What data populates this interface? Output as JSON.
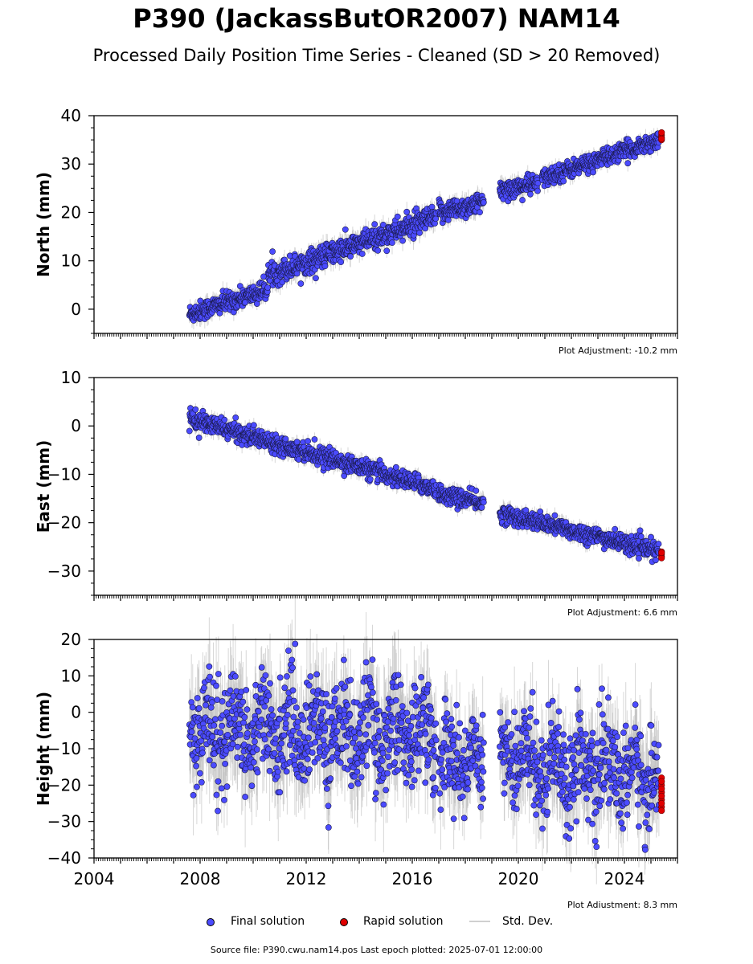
{
  "header": {
    "title": "P390 (JackassButOR2007) NAM14",
    "subtitle": "Processed Daily Position Time Series - Cleaned (SD > 20 Removed)"
  },
  "colors": {
    "final": "#4b4bff",
    "rapid": "#e00000",
    "stddev": "#bdbdbd",
    "axis": "#000000"
  },
  "legend": {
    "final_label": "Final solution",
    "rapid_label": "Rapid solution",
    "std_label": "Std. Dev."
  },
  "footer": {
    "source_text": "Source file: P390.cwu.nam14.pos  Last epoch plotted: 2025-07-01 12:00:00"
  },
  "chart_data": [
    {
      "type": "scatter",
      "ylabel": "North (mm)",
      "adjustment_label": "Plot Adjustment: -10.2 mm",
      "xlim": [
        2004,
        2026
      ],
      "ylim": [
        -5,
        40
      ],
      "yticks": [
        0,
        10,
        20,
        30,
        40
      ],
      "grid": false,
      "segments": [
        {
          "start": 2007.6,
          "end": 2010.55,
          "v0": -1,
          "v1": 4,
          "noise": 1.0
        },
        {
          "start": 2010.55,
          "end": 2016.9,
          "v0": 7,
          "v1": 19,
          "noise": 1.2
        },
        {
          "start": 2017.0,
          "end": 2018.7,
          "v0": 20,
          "v1": 22,
          "noise": 1.1
        },
        {
          "start": 2019.3,
          "end": 2020.75,
          "v0": 24.5,
          "v1": 26,
          "noise": 1.0
        },
        {
          "start": 2020.9,
          "end": 2025.3,
          "v0": 27,
          "v1": 35,
          "noise": 0.9
        }
      ],
      "rapid": {
        "x": 2025.4,
        "values": [
          35,
          36,
          35.5,
          36.5,
          35.2
        ]
      }
    },
    {
      "type": "scatter",
      "ylabel": "East (mm)",
      "adjustment_label": "Plot Adjustment: 6.6 mm",
      "xlim": [
        2004,
        2026
      ],
      "ylim": [
        -35,
        10
      ],
      "yticks": [
        -30,
        -20,
        -10,
        0,
        10
      ],
      "grid": false,
      "segments": [
        {
          "start": 2007.6,
          "end": 2016.9,
          "v0": 1.5,
          "v1": -13,
          "noise": 0.9
        },
        {
          "start": 2017.0,
          "end": 2018.7,
          "v0": -14,
          "v1": -16,
          "noise": 0.9
        },
        {
          "start": 2019.3,
          "end": 2025.3,
          "v0": -18,
          "v1": -26,
          "noise": 0.9
        }
      ],
      "rapid": {
        "x": 2025.4,
        "values": [
          -26,
          -27,
          -26.5,
          -27.3,
          -26.2
        ]
      }
    },
    {
      "type": "scatter",
      "ylabel": "Height (mm)",
      "adjustment_label": "Plot Adjustment: 8.3 mm",
      "xlabel": "",
      "xlim": [
        2004,
        2026
      ],
      "ylim": [
        -40,
        20
      ],
      "yticks": [
        -40,
        -30,
        -20,
        -10,
        0,
        10,
        20
      ],
      "xticks": [
        2004,
        2008,
        2012,
        2016,
        2020,
        2024
      ],
      "grid": false,
      "segments": [
        {
          "start": 2007.6,
          "end": 2016.9,
          "v0": -4,
          "v1": -6,
          "noise": 7.0,
          "seasonal": 5.0
        },
        {
          "start": 2017.0,
          "end": 2018.7,
          "v0": -13,
          "v1": -13,
          "noise": 6.0,
          "seasonal": 4.0
        },
        {
          "start": 2019.3,
          "end": 2025.3,
          "v0": -12,
          "v1": -18,
          "noise": 6.5,
          "seasonal": 5.0
        }
      ],
      "rapid": {
        "x": 2025.4,
        "values": [
          -18,
          -20,
          -22,
          -24,
          -26,
          -19,
          -21,
          -23,
          -25,
          -27
        ]
      }
    }
  ]
}
